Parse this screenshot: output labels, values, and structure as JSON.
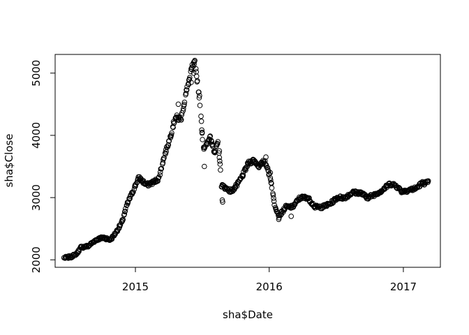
{
  "chart_data": {
    "type": "scatter",
    "title": "",
    "xlabel": "sha$Date",
    "ylabel": "sha$Close",
    "xlim": [
      "2014-05-27",
      "2017-04-12"
    ],
    "ylim": [
      1880,
      5300
    ],
    "x_ticks": [
      "2015-01-01",
      "2016-01-01",
      "2017-01-01"
    ],
    "x_tick_labels": [
      "2015",
      "2016",
      "2017"
    ],
    "y_ticks": [
      2000,
      3000,
      4000,
      5000
    ],
    "y_tick_labels": [
      "2000",
      "3000",
      "4000",
      "5000"
    ],
    "grid": false,
    "marker": "open-circle",
    "keypoints": [
      [
        "2014-06-20",
        2030
      ],
      [
        "2014-07-10",
        2050
      ],
      [
        "2014-07-25",
        2100
      ],
      [
        "2014-08-05",
        2200
      ],
      [
        "2014-08-25",
        2220
      ],
      [
        "2014-09-15",
        2320
      ],
      [
        "2014-10-05",
        2360
      ],
      [
        "2014-10-25",
        2320
      ],
      [
        "2014-11-10",
        2450
      ],
      [
        "2014-11-25",
        2600
      ],
      [
        "2014-12-10",
        2900
      ],
      [
        "2014-12-25",
        3100
      ],
      [
        "2015-01-10",
        3320
      ],
      [
        "2015-02-01",
        3200
      ],
      [
        "2015-02-20",
        3250
      ],
      [
        "2015-03-05",
        3300
      ],
      [
        "2015-03-20",
        3650
      ],
      [
        "2015-04-05",
        3950
      ],
      [
        "2015-04-20",
        4300
      ],
      [
        "2015-05-05",
        4250
      ],
      [
        "2015-05-20",
        4700
      ],
      [
        "2015-06-05",
        5100
      ],
      [
        "2015-06-12",
        5160
      ],
      [
        "2015-06-25",
        4600
      ],
      [
        "2015-07-05",
        3800
      ],
      [
        "2015-07-15",
        3850
      ],
      [
        "2015-07-25",
        4000
      ],
      [
        "2015-08-05",
        3700
      ],
      [
        "2015-08-15",
        3900
      ],
      [
        "2015-08-24",
        3200
      ],
      [
        "2015-09-05",
        3150
      ],
      [
        "2015-09-20",
        3100
      ],
      [
        "2015-10-05",
        3200
      ],
      [
        "2015-10-20",
        3350
      ],
      [
        "2015-11-05",
        3550
      ],
      [
        "2015-11-20",
        3600
      ],
      [
        "2015-12-05",
        3500
      ],
      [
        "2015-12-20",
        3600
      ],
      [
        "2016-01-05",
        3300
      ],
      [
        "2016-01-15",
        2900
      ],
      [
        "2016-01-28",
        2700
      ],
      [
        "2016-02-15",
        2850
      ],
      [
        "2016-03-05",
        2850
      ],
      [
        "2016-03-25",
        3000
      ],
      [
        "2016-04-15",
        3000
      ],
      [
        "2016-05-05",
        2850
      ],
      [
        "2016-05-25",
        2850
      ],
      [
        "2016-06-15",
        2900
      ],
      [
        "2016-07-05",
        3000
      ],
      [
        "2016-07-25",
        3000
      ],
      [
        "2016-08-15",
        3080
      ],
      [
        "2016-09-05",
        3080
      ],
      [
        "2016-09-25",
        3000
      ],
      [
        "2016-10-15",
        3050
      ],
      [
        "2016-11-05",
        3120
      ],
      [
        "2016-11-25",
        3220
      ],
      [
        "2016-12-10",
        3200
      ],
      [
        "2016-12-28",
        3100
      ],
      [
        "2017-01-15",
        3120
      ],
      [
        "2017-02-05",
        3150
      ],
      [
        "2017-02-20",
        3230
      ],
      [
        "2017-03-10",
        3240
      ]
    ],
    "extra_points": [
      [
        "2015-07-08",
        3500
      ],
      [
        "2015-08-27",
        2930
      ],
      [
        "2015-08-26",
        2960
      ],
      [
        "2016-01-27",
        2650
      ],
      [
        "2016-03-01",
        2700
      ],
      [
        "2015-06-02",
        4850
      ],
      [
        "2015-06-09",
        5000
      ],
      [
        "2015-04-28",
        4500
      ],
      [
        "2015-07-02",
        4050
      ],
      [
        "2015-08-18",
        3750
      ],
      [
        "2015-12-23",
        3650
      ],
      [
        "2016-01-04",
        3400
      ]
    ]
  }
}
